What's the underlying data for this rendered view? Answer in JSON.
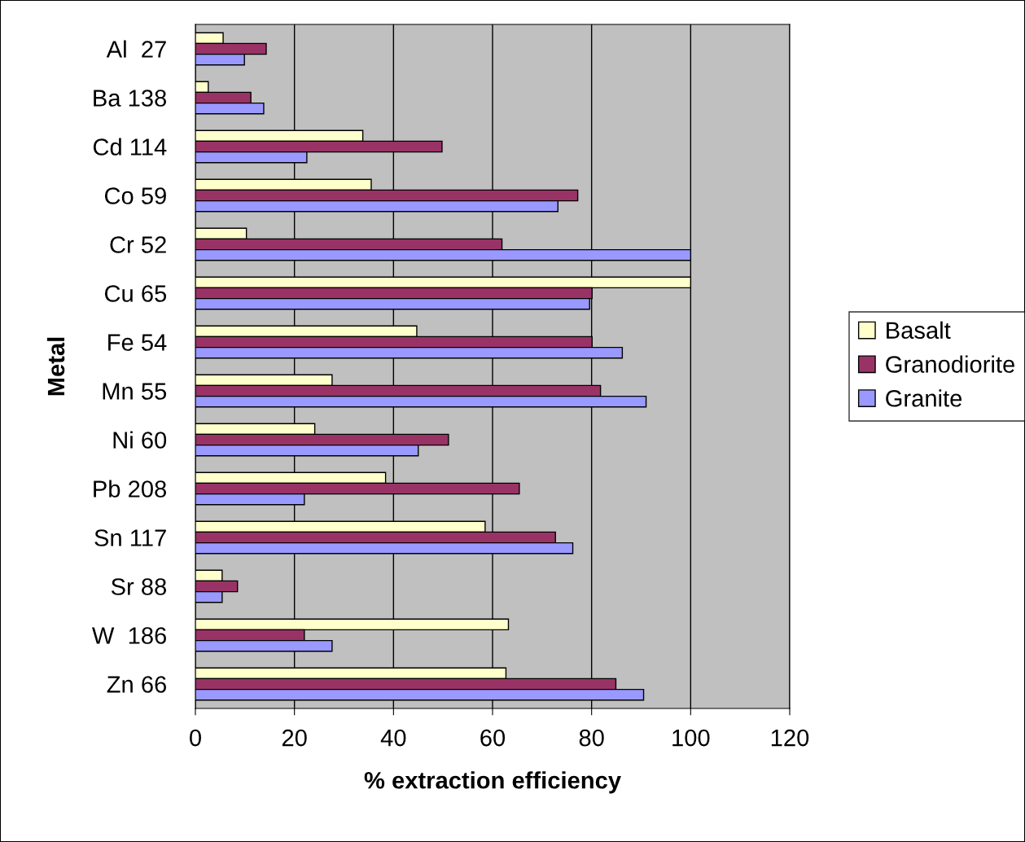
{
  "chart_data": {
    "type": "bar",
    "orientation": "horizontal",
    "xlabel": "% extraction efficiency",
    "ylabel": "Metal",
    "categories": [
      "Al  27",
      "Ba 138",
      "Cd 114",
      "Co 59",
      "Cr 52",
      "Cu 65",
      "Fe 54",
      "Mn 55",
      "Ni 60",
      "Pb 208",
      "Sn 117",
      "Sr 88",
      "W  186",
      "Zn 66"
    ],
    "series": [
      {
        "name": "Basalt",
        "color": "#ffffcc",
        "values": [
          5.6,
          2.6,
          33.8,
          35.5,
          10.3,
          100,
          44.7,
          27.6,
          24.1,
          38.4,
          58.5,
          5.4,
          63.2,
          62.7
        ]
      },
      {
        "name": "Granodiorite",
        "color": "#993366",
        "values": [
          14.3,
          11.2,
          49.8,
          77.2,
          61.9,
          80.1,
          80.1,
          81.8,
          51.1,
          65.4,
          72.7,
          8.5,
          22,
          84.9
        ]
      },
      {
        "name": "Granite",
        "color": "#9999ff",
        "values": [
          9.9,
          13.8,
          22.5,
          73.2,
          100,
          79.6,
          86.2,
          91,
          45,
          22,
          76.2,
          5.4,
          27.6,
          90.5
        ]
      }
    ],
    "xlim": [
      0,
      120
    ],
    "xticks": [
      0,
      20,
      40,
      60,
      80,
      100,
      120
    ],
    "grid": "x",
    "legend": "right"
  }
}
